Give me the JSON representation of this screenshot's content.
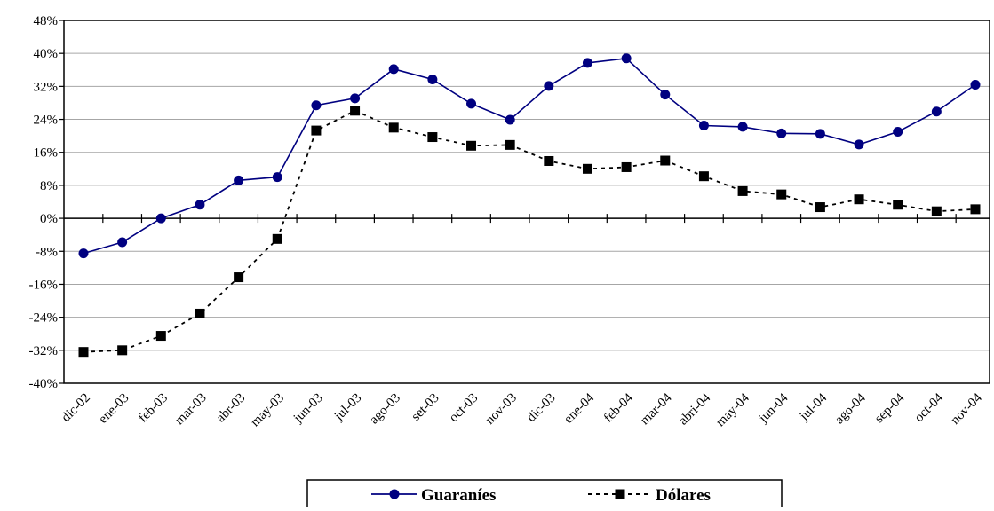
{
  "chart_data": {
    "type": "line",
    "categories": [
      "dic-02",
      "ene-03",
      "feb-03",
      "mar-03",
      "abr-03",
      "may-03",
      "jun-03",
      "jul-03",
      "ago-03",
      "set-03",
      "oct-03",
      "nov-03",
      "dic-03",
      "ene-04",
      "feb-04",
      "mar-04",
      "abri-04",
      "may-04",
      "jun-04",
      "jul-04",
      "ago-04",
      "sep-04",
      "oct-04",
      "nov-04"
    ],
    "series": [
      {
        "name": "Guaraníes",
        "color": "#000080",
        "line_style": "solid",
        "marker": "circle",
        "values": [
          -8.5,
          -5.8,
          0.0,
          3.3,
          9.2,
          10.0,
          27.4,
          29.1,
          36.2,
          33.7,
          27.8,
          23.9,
          32.1,
          37.7,
          38.8,
          30.0,
          22.5,
          22.2,
          20.6,
          20.5,
          17.9,
          21.0,
          25.9,
          32.4
        ]
      },
      {
        "name": "Dólares",
        "color": "#000000",
        "line_style": "dashed",
        "marker": "square",
        "values": [
          -32.4,
          -32.0,
          -28.5,
          -23.1,
          -14.3,
          -5.0,
          21.3,
          26.1,
          22.0,
          19.7,
          17.6,
          17.8,
          13.9,
          12.0,
          12.4,
          14.0,
          10.2,
          6.6,
          5.8,
          2.7,
          4.6,
          3.3,
          1.7,
          2.2
        ]
      }
    ],
    "y_ticks": [
      "48%",
      "40%",
      "32%",
      "24%",
      "16%",
      "8%",
      "0%",
      "-8%",
      "-16%",
      "-24%",
      "-32%",
      "-40%"
    ],
    "ylim": [
      -40,
      48
    ],
    "y_step": 8,
    "grid": true,
    "legend_position": "bottom"
  }
}
